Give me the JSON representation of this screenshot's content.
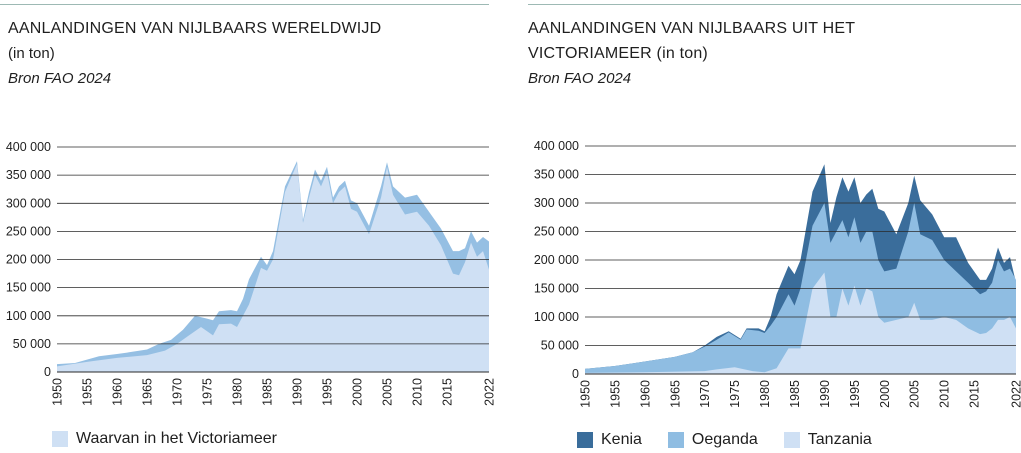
{
  "left": {
    "title": "AANLANDINGEN VAN NIJLBAARS WERELDWIJD",
    "subtitle": "(in ton)",
    "source": "Bron FAO 2024",
    "legend": [
      "Waarvan in het Victoriameer"
    ]
  },
  "right": {
    "title_line1": "AANLANDINGEN VAN NIJLBAARS UIT HET",
    "title_line2": "VICTORIAMEER  (in ton)",
    "source": "Bron FAO 2024",
    "legend": [
      "Kenia",
      "Oeganda",
      "Tanzania"
    ]
  },
  "colors": {
    "world": "#95bfe3",
    "victoria": "#cfe0f4",
    "kenia": "#3a6d9b",
    "oeganda": "#8fbde2",
    "tanzania": "#cfe0f4",
    "grid": "#2a2a2a",
    "rule": "#9db9b4"
  },
  "chart_data": [
    {
      "type": "area",
      "title": "AANLANDINGEN VAN NIJLBAARS WERELDWIJD",
      "subtitle": "(in ton)",
      "source": "Bron FAO 2024",
      "ylim": [
        0,
        400000
      ],
      "yticks": [
        "0",
        "50 000",
        "100 000",
        "150 000",
        "200 000",
        "250 000",
        "300 000",
        "350 000",
        "400 000"
      ],
      "xticks": [
        "1950",
        "1955",
        "1960",
        "1965",
        "1970",
        "1975",
        "1980",
        "1985",
        "1990",
        "1995",
        "2000",
        "2005",
        "2010",
        "2015",
        "2022"
      ],
      "grid": true,
      "series": [
        {
          "role": "world",
          "points": [
            [
              1950,
              14000
            ],
            [
              1953,
              16000
            ],
            [
              1955,
              22000
            ],
            [
              1957,
              28000
            ],
            [
              1960,
              32000
            ],
            [
              1962,
              35000
            ],
            [
              1965,
              40000
            ],
            [
              1967,
              50000
            ],
            [
              1969,
              57000
            ],
            [
              1971,
              75000
            ],
            [
              1973,
              100000
            ],
            [
              1975,
              95000
            ],
            [
              1976,
              92000
            ],
            [
              1977,
              108000
            ],
            [
              1979,
              110000
            ],
            [
              1980,
              108000
            ],
            [
              1981,
              130000
            ],
            [
              1982,
              165000
            ],
            [
              1984,
              205000
            ],
            [
              1985,
              190000
            ],
            [
              1986,
              215000
            ],
            [
              1988,
              330000
            ],
            [
              1990,
              375000
            ],
            [
              1991,
              270000
            ],
            [
              1992,
              320000
            ],
            [
              1993,
              360000
            ],
            [
              1994,
              340000
            ],
            [
              1995,
              365000
            ],
            [
              1996,
              310000
            ],
            [
              1997,
              330000
            ],
            [
              1998,
              340000
            ],
            [
              1999,
              305000
            ],
            [
              2000,
              300000
            ],
            [
              2002,
              260000
            ],
            [
              2004,
              330000
            ],
            [
              2005,
              373000
            ],
            [
              2006,
              330000
            ],
            [
              2008,
              310000
            ],
            [
              2010,
              315000
            ],
            [
              2012,
              285000
            ],
            [
              2014,
              255000
            ],
            [
              2016,
              215000
            ],
            [
              2017,
              215000
            ],
            [
              2018,
              220000
            ],
            [
              2019,
              250000
            ],
            [
              2020,
              230000
            ],
            [
              2021,
              240000
            ],
            [
              2022,
              232000
            ]
          ]
        },
        {
          "role": "victoria",
          "name": "Waarvan in het Victoriameer",
          "points": [
            [
              1950,
              10000
            ],
            [
              1955,
              18000
            ],
            [
              1960,
              25000
            ],
            [
              1965,
              30000
            ],
            [
              1968,
              38000
            ],
            [
              1970,
              50000
            ],
            [
              1972,
              65000
            ],
            [
              1974,
              80000
            ],
            [
              1976,
              65000
            ],
            [
              1977,
              85000
            ],
            [
              1979,
              86000
            ],
            [
              1980,
              80000
            ],
            [
              1982,
              120000
            ],
            [
              1984,
              185000
            ],
            [
              1985,
              180000
            ],
            [
              1986,
              200000
            ],
            [
              1988,
              320000
            ],
            [
              1990,
              370000
            ],
            [
              1991,
              265000
            ],
            [
              1992,
              310000
            ],
            [
              1993,
              350000
            ],
            [
              1994,
              330000
            ],
            [
              1995,
              355000
            ],
            [
              1996,
              300000
            ],
            [
              1997,
              320000
            ],
            [
              1998,
              330000
            ],
            [
              1999,
              290000
            ],
            [
              2000,
              285000
            ],
            [
              2002,
              245000
            ],
            [
              2004,
              310000
            ],
            [
              2005,
              365000
            ],
            [
              2006,
              315000
            ],
            [
              2008,
              280000
            ],
            [
              2010,
              285000
            ],
            [
              2012,
              260000
            ],
            [
              2014,
              225000
            ],
            [
              2016,
              175000
            ],
            [
              2017,
              172000
            ],
            [
              2018,
              195000
            ],
            [
              2019,
              230000
            ],
            [
              2020,
              205000
            ],
            [
              2021,
              215000
            ],
            [
              2022,
              182000
            ]
          ]
        }
      ]
    },
    {
      "type": "area",
      "title": "AANLANDINGEN VAN NIJLBAARS UIT HET VICTORIAMEER  (in ton)",
      "source": "Bron FAO 2024",
      "ylim": [
        0,
        400000
      ],
      "yticks": [
        "0",
        "50 000",
        "100 000",
        "150 000",
        "200 000",
        "250 000",
        "300 000",
        "350 000",
        "400 000"
      ],
      "xticks": [
        "1950",
        "1955",
        "1960",
        "1965",
        "1970",
        "1975",
        "1980",
        "1985",
        "1990",
        "1995",
        "2000",
        "2005",
        "2010",
        "2015",
        "2022"
      ],
      "grid": true,
      "stacked_cumulative": true,
      "series": [
        {
          "role": "kenia",
          "name": "Kenia",
          "points": [
            [
              1950,
              9000
            ],
            [
              1955,
              14000
            ],
            [
              1960,
              22000
            ],
            [
              1965,
              30000
            ],
            [
              1968,
              38000
            ],
            [
              1970,
              50000
            ],
            [
              1972,
              65000
            ],
            [
              1974,
              75000
            ],
            [
              1976,
              62000
            ],
            [
              1977,
              80000
            ],
            [
              1979,
              80000
            ],
            [
              1980,
              75000
            ],
            [
              1981,
              100000
            ],
            [
              1982,
              140000
            ],
            [
              1984,
              190000
            ],
            [
              1985,
              175000
            ],
            [
              1986,
              200000
            ],
            [
              1988,
              320000
            ],
            [
              1990,
              368000
            ],
            [
              1991,
              265000
            ],
            [
              1992,
              310000
            ],
            [
              1993,
              345000
            ],
            [
              1994,
              320000
            ],
            [
              1995,
              345000
            ],
            [
              1996,
              300000
            ],
            [
              1997,
              315000
            ],
            [
              1998,
              325000
            ],
            [
              1999,
              290000
            ],
            [
              2000,
              285000
            ],
            [
              2002,
              245000
            ],
            [
              2004,
              300000
            ],
            [
              2005,
              348000
            ],
            [
              2006,
              305000
            ],
            [
              2008,
              280000
            ],
            [
              2010,
              240000
            ],
            [
              2012,
              240000
            ],
            [
              2014,
              195000
            ],
            [
              2016,
              165000
            ],
            [
              2017,
              165000
            ],
            [
              2018,
              185000
            ],
            [
              2019,
              222000
            ],
            [
              2020,
              195000
            ],
            [
              2021,
              205000
            ],
            [
              2022,
              160000
            ]
          ]
        },
        {
          "role": "oeganda",
          "name": "Oeganda",
          "points": [
            [
              1950,
              9000
            ],
            [
              1955,
              14000
            ],
            [
              1960,
              22000
            ],
            [
              1965,
              30000
            ],
            [
              1968,
              38000
            ],
            [
              1970,
              48000
            ],
            [
              1972,
              60000
            ],
            [
              1974,
              73000
            ],
            [
              1976,
              60000
            ],
            [
              1977,
              78000
            ],
            [
              1979,
              76000
            ],
            [
              1980,
              72000
            ],
            [
              1981,
              85000
            ],
            [
              1982,
              100000
            ],
            [
              1984,
              140000
            ],
            [
              1985,
              120000
            ],
            [
              1986,
              150000
            ],
            [
              1988,
              260000
            ],
            [
              1990,
              300000
            ],
            [
              1991,
              230000
            ],
            [
              1992,
              250000
            ],
            [
              1993,
              270000
            ],
            [
              1994,
              240000
            ],
            [
              1995,
              275000
            ],
            [
              1996,
              230000
            ],
            [
              1997,
              250000
            ],
            [
              1998,
              250000
            ],
            [
              1999,
              200000
            ],
            [
              2000,
              180000
            ],
            [
              2002,
              185000
            ],
            [
              2004,
              250000
            ],
            [
              2005,
              300000
            ],
            [
              2006,
              245000
            ],
            [
              2008,
              235000
            ],
            [
              2010,
              200000
            ],
            [
              2012,
              180000
            ],
            [
              2014,
              160000
            ],
            [
              2016,
              140000
            ],
            [
              2017,
              145000
            ],
            [
              2018,
              160000
            ],
            [
              2019,
              200000
            ],
            [
              2020,
              180000
            ],
            [
              2021,
              185000
            ],
            [
              2022,
              165000
            ]
          ]
        },
        {
          "role": "tanzania",
          "name": "Tanzania",
          "points": [
            [
              1950,
              2000
            ],
            [
              1960,
              3000
            ],
            [
              1970,
              5000
            ],
            [
              1972,
              8000
            ],
            [
              1975,
              12000
            ],
            [
              1978,
              5000
            ],
            [
              1980,
              3000
            ],
            [
              1982,
              10000
            ],
            [
              1984,
              45000
            ],
            [
              1986,
              45000
            ],
            [
              1988,
              150000
            ],
            [
              1990,
              178000
            ],
            [
              1991,
              100000
            ],
            [
              1992,
              100000
            ],
            [
              1993,
              150000
            ],
            [
              1994,
              120000
            ],
            [
              1995,
              155000
            ],
            [
              1996,
              120000
            ],
            [
              1997,
              150000
            ],
            [
              1998,
              145000
            ],
            [
              1999,
              100000
            ],
            [
              2000,
              90000
            ],
            [
              2002,
              95000
            ],
            [
              2004,
              100000
            ],
            [
              2005,
              125000
            ],
            [
              2006,
              95000
            ],
            [
              2008,
              95000
            ],
            [
              2010,
              100000
            ],
            [
              2012,
              95000
            ],
            [
              2014,
              80000
            ],
            [
              2016,
              70000
            ],
            [
              2017,
              72000
            ],
            [
              2018,
              80000
            ],
            [
              2019,
              95000
            ],
            [
              2020,
              95000
            ],
            [
              2021,
              100000
            ],
            [
              2022,
              80000
            ]
          ]
        }
      ]
    }
  ]
}
